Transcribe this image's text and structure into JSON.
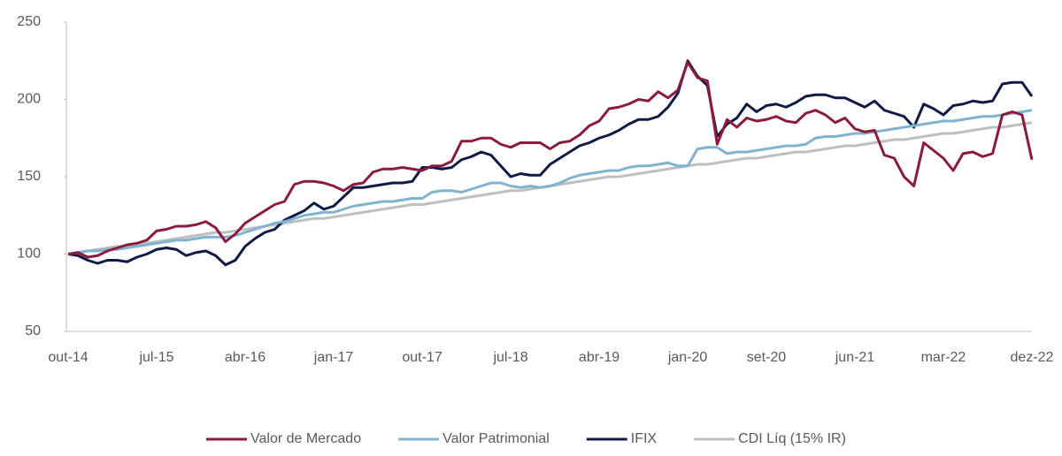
{
  "chart_data": {
    "type": "line",
    "categories": [
      "out-14",
      null,
      null,
      null,
      null,
      null,
      null,
      null,
      null,
      "jul-15",
      null,
      null,
      null,
      null,
      null,
      null,
      null,
      null,
      "abr-16",
      null,
      null,
      null,
      null,
      null,
      null,
      null,
      null,
      "jan-17",
      null,
      null,
      null,
      null,
      null,
      null,
      null,
      null,
      "out-17",
      null,
      null,
      null,
      null,
      null,
      null,
      null,
      null,
      "jul-18",
      null,
      null,
      null,
      null,
      null,
      null,
      null,
      null,
      "abr-19",
      null,
      null,
      null,
      null,
      null,
      null,
      null,
      null,
      "jan-20",
      null,
      null,
      null,
      null,
      null,
      null,
      null,
      "set-20",
      null,
      null,
      null,
      null,
      null,
      null,
      null,
      null,
      "jun-21",
      null,
      null,
      null,
      null,
      null,
      null,
      null,
      null,
      "mar-22",
      null,
      null,
      null,
      null,
      null,
      null,
      null,
      null,
      "dez-22"
    ],
    "series": [
      {
        "name": "Valor de Mercado",
        "color": "#8b1a3f",
        "values": [
          100,
          101,
          98,
          99,
          102,
          104,
          106,
          107,
          109,
          115,
          116,
          118,
          118,
          119,
          121,
          117,
          108,
          113,
          120,
          124,
          128,
          132,
          134,
          145,
          147,
          147,
          146,
          144,
          141,
          145,
          146,
          153,
          155,
          155,
          156,
          155,
          154,
          157,
          157,
          160,
          173,
          173,
          175,
          175,
          171,
          169,
          172,
          172,
          172,
          168,
          172,
          173,
          177,
          183,
          186,
          194,
          195,
          197,
          200,
          199,
          205,
          201,
          206,
          224,
          214,
          212,
          171,
          187,
          182,
          188,
          186,
          187,
          189,
          186,
          185,
          191,
          193,
          190,
          185,
          188,
          181,
          179,
          180,
          164,
          162,
          150,
          144,
          172,
          167,
          162,
          154,
          165,
          166,
          163,
          165,
          190,
          192,
          190,
          161
        ]
      },
      {
        "name": "Valor Patrimonial",
        "color": "#7fb3cf",
        "values": [
          100,
          101,
          102,
          102,
          103,
          103,
          104,
          105,
          106,
          107,
          108,
          109,
          109,
          110,
          111,
          111,
          111,
          112,
          114,
          116,
          118,
          120,
          121,
          123,
          125,
          126,
          127,
          127,
          129,
          131,
          132,
          133,
          134,
          134,
          135,
          136,
          136,
          140,
          141,
          141,
          140,
          142,
          144,
          146,
          146,
          144,
          143,
          144,
          143,
          144,
          146,
          149,
          151,
          152,
          153,
          154,
          154,
          156,
          157,
          157,
          158,
          159,
          157,
          157,
          168,
          169,
          169,
          165,
          166,
          166,
          167,
          168,
          169,
          170,
          170,
          171,
          175,
          176,
          176,
          177,
          178,
          178,
          179,
          180,
          181,
          182,
          183,
          184,
          185,
          186,
          186,
          187,
          188,
          189,
          189,
          190,
          191,
          192,
          193
        ]
      },
      {
        "name": "IFIX",
        "color": "#0f1a45",
        "values": [
          100,
          99,
          96,
          94,
          96,
          96,
          95,
          98,
          100,
          103,
          104,
          103,
          99,
          101,
          102,
          99,
          93,
          96,
          105,
          110,
          114,
          116,
          122,
          125,
          128,
          133,
          129,
          131,
          137,
          143,
          143,
          144,
          145,
          146,
          146,
          147,
          156,
          156,
          155,
          156,
          161,
          163,
          166,
          164,
          157,
          150,
          152,
          151,
          151,
          158,
          162,
          166,
          170,
          172,
          175,
          177,
          180,
          184,
          187,
          187,
          189,
          195,
          204,
          225,
          215,
          209,
          176,
          184,
          188,
          197,
          192,
          196,
          197,
          195,
          198,
          202,
          203,
          203,
          201,
          201,
          198,
          195,
          199,
          193,
          191,
          189,
          182,
          197,
          194,
          190,
          196,
          197,
          199,
          198,
          199,
          210,
          211,
          211,
          202
        ]
      },
      {
        "name": "CDI Líq (15% IR)",
        "color": "#bfbfbf",
        "values": [
          100,
          101,
          102,
          103,
          104,
          105,
          105,
          106,
          107,
          108,
          109,
          110,
          111,
          112,
          113,
          114,
          114,
          115,
          116,
          117,
          118,
          119,
          120,
          121,
          122,
          123,
          123,
          124,
          125,
          126,
          127,
          128,
          129,
          130,
          131,
          132,
          132,
          133,
          134,
          135,
          136,
          137,
          138,
          139,
          140,
          141,
          141,
          142,
          143,
          144,
          145,
          146,
          147,
          148,
          149,
          150,
          150,
          151,
          152,
          153,
          154,
          155,
          156,
          157,
          158,
          158,
          159,
          160,
          161,
          162,
          162,
          163,
          164,
          165,
          166,
          166,
          167,
          168,
          169,
          170,
          170,
          171,
          172,
          173,
          174,
          174,
          175,
          176,
          177,
          178,
          178,
          179,
          180,
          181,
          182,
          182,
          183,
          184,
          185
        ]
      }
    ],
    "ylim": [
      50,
      250
    ],
    "yticks": [
      50,
      100,
      150,
      200,
      250
    ],
    "grid": false,
    "legend": "bottom"
  }
}
